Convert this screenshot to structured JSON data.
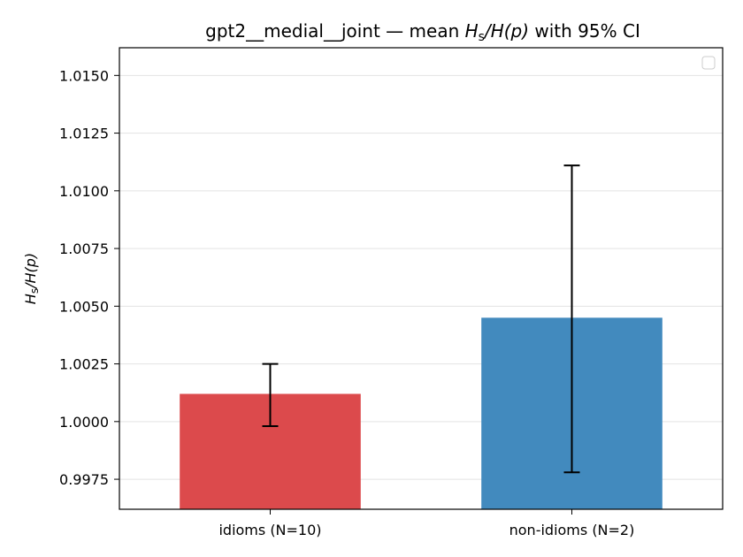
{
  "chart_data": {
    "type": "bar",
    "title": "gpt2__medial__joint — mean H_s/H(p) with 95% CI",
    "title_parts": {
      "prefix": "gpt2__medial__joint — mean ",
      "ratio_num": "H",
      "ratio_sub": "s",
      "ratio_den": "/H(p)",
      "suffix": " with 95% CI"
    },
    "xlabel": "",
    "ylabel": "H_s/H(p)",
    "ylabel_parts": {
      "main": "H",
      "sub": "s",
      "rest": "/H(p)"
    },
    "categories": [
      "idioms (N=10)",
      "non-idioms (N=2)"
    ],
    "values": [
      1.0012,
      1.0045
    ],
    "ci_lower": [
      0.9998,
      0.9978
    ],
    "ci_upper": [
      1.0025,
      1.0111
    ],
    "colors": [
      "#dc4a4c",
      "#428abe"
    ],
    "ylim": [
      0.9962,
      1.0162
    ],
    "yticks": [
      0.9975,
      1.0,
      1.0025,
      1.005,
      1.0075,
      1.01,
      1.0125,
      1.015
    ],
    "ytick_labels": [
      "0.9975",
      "1.0000",
      "1.0025",
      "1.0050",
      "1.0075",
      "1.0100",
      "1.0125",
      "1.0150"
    ],
    "grid": "y",
    "legend_position": "top-right",
    "legend_entries": []
  }
}
